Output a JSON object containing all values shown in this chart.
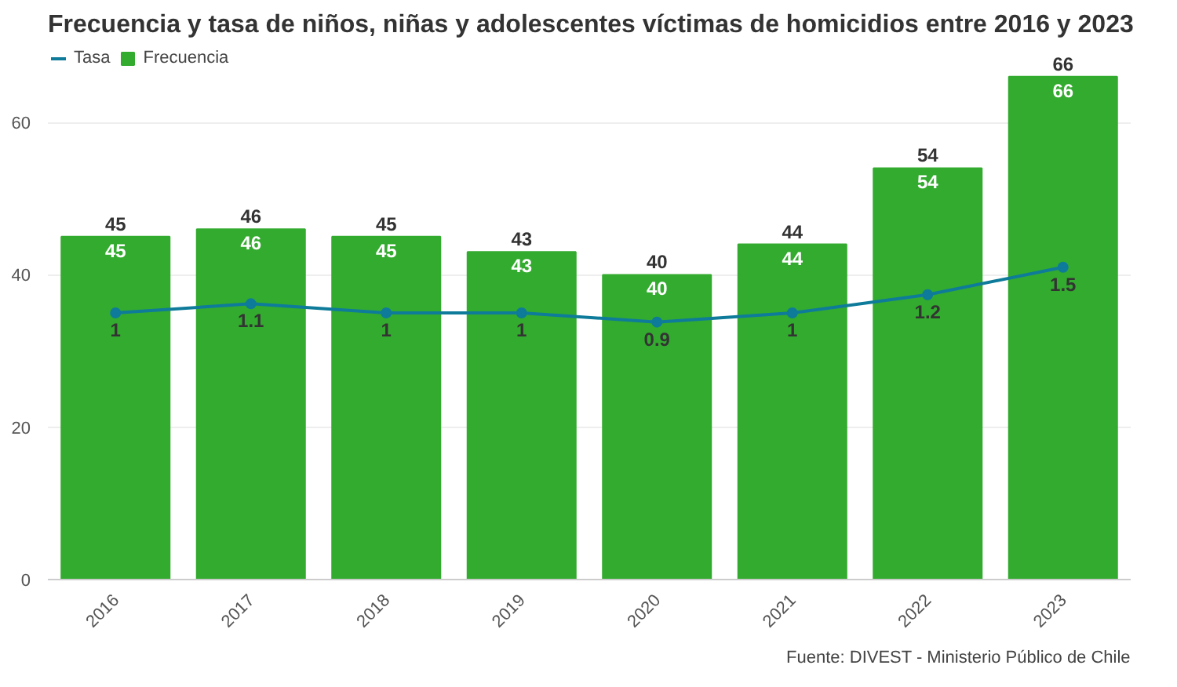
{
  "chart_data": {
    "type": "bar",
    "title": "Frecuencia y tasa de niños, niñas y adolescentes víctimas de homicidios entre 2016 y 2023",
    "categories": [
      "2016",
      "2017",
      "2018",
      "2019",
      "2020",
      "2021",
      "2022",
      "2023"
    ],
    "series": [
      {
        "name": "Tasa",
        "type": "line",
        "axis": "y2",
        "color": "#0e7b9a",
        "values": [
          1,
          1.1,
          1,
          1,
          0.9,
          1,
          1.2,
          1.5
        ]
      },
      {
        "name": "Frecuencia",
        "value_labels": [
          "45",
          "46",
          "45",
          "43",
          "40",
          "44",
          "54",
          "66"
        ],
        "color": "#33ab2f",
        "values": [
          45,
          46,
          45,
          43,
          40,
          44,
          54,
          66
        ]
      }
    ],
    "ylim": [
      0,
      70
    ],
    "yticks": [
      0,
      20,
      40,
      60
    ],
    "y2lim": [
      -1.92,
      3.92
    ],
    "grid": "y",
    "legend": "top left",
    "marker": "circle",
    "data_labels": true,
    "annotations": [
      "Fuente: DIVEST - Ministerio Público de Chile",
      {
        "text": "45",
        "x": "2016",
        "y": 45
      },
      {
        "text": "46",
        "x": "2017",
        "y": 46
      },
      {
        "text": "45",
        "x": "2018",
        "y": 45
      },
      {
        "text": "43",
        "x": "2019",
        "y": 43
      },
      {
        "text": "40",
        "x": "2020",
        "y": 40
      },
      {
        "text": "44",
        "x": "2021",
        "y": 44
      },
      {
        "text": "54",
        "x": "2022",
        "y": 54
      },
      {
        "text": "66",
        "x": "2023",
        "y": 66
      }
    ]
  }
}
